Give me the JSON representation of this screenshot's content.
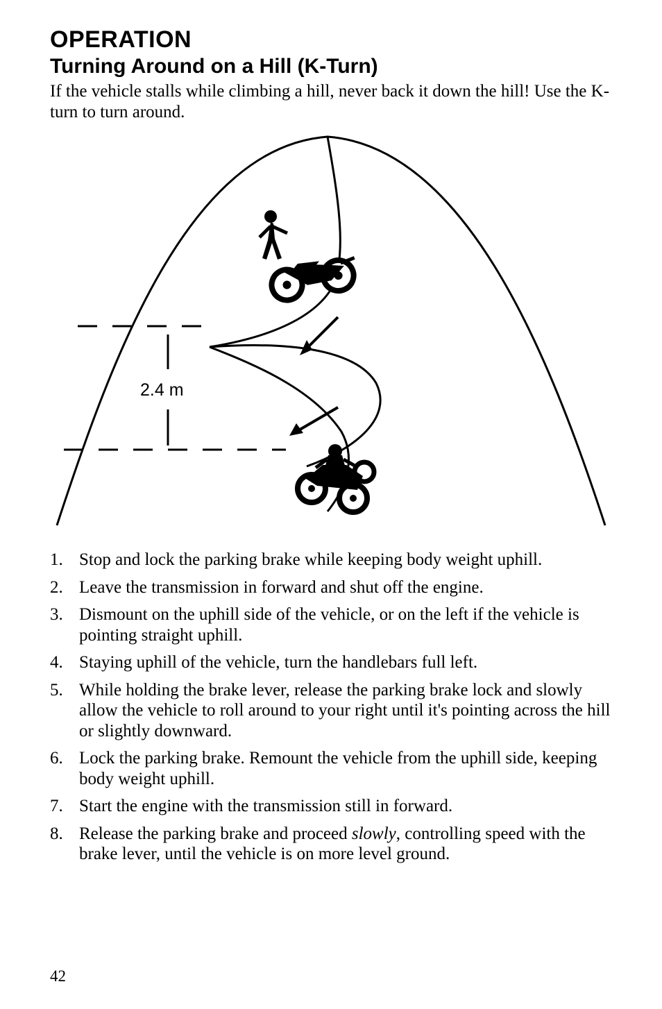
{
  "header": {
    "section": "OPERATION",
    "subsection": "Turning Around on a Hill (K-Turn)"
  },
  "intro": "If the vehicle stalls while climbing a hill, never back it down the hill! Use the K-turn to turn around.",
  "diagram": {
    "dimension_label": "2.4 m",
    "colors": {
      "stroke": "#000000",
      "background": "#ffffff"
    },
    "line_width_main": 3,
    "line_width_dash": 3,
    "dash_pattern": "28 22"
  },
  "steps": [
    {
      "n": "1.",
      "text": "Stop and lock the parking brake while keeping body weight uphill."
    },
    {
      "n": "2.",
      "text": "Leave the transmission in forward and shut off the engine."
    },
    {
      "n": "3.",
      "text": "Dismount on the uphill side of the vehicle, or on the left if the vehicle is pointing straight uphill."
    },
    {
      "n": "4.",
      "text": "Staying uphill of the vehicle, turn the handlebars full left."
    },
    {
      "n": "5.",
      "text": "While holding the brake lever, release the parking brake lock and slowly allow the vehicle to roll around to your right until it's pointing across the hill or slightly downward."
    },
    {
      "n": "6.",
      "text": "Lock the parking brake. Remount the vehicle from the uphill side, keeping body weight uphill."
    },
    {
      "n": "7.",
      "text": "Start the engine with the transmission still in forward."
    },
    {
      "n": "8.",
      "text_html": "Release the parking brake and proceed <em>slowly</em>, controlling speed with the brake lever, until the vehicle is on more level ground."
    }
  ],
  "page_number": "42"
}
